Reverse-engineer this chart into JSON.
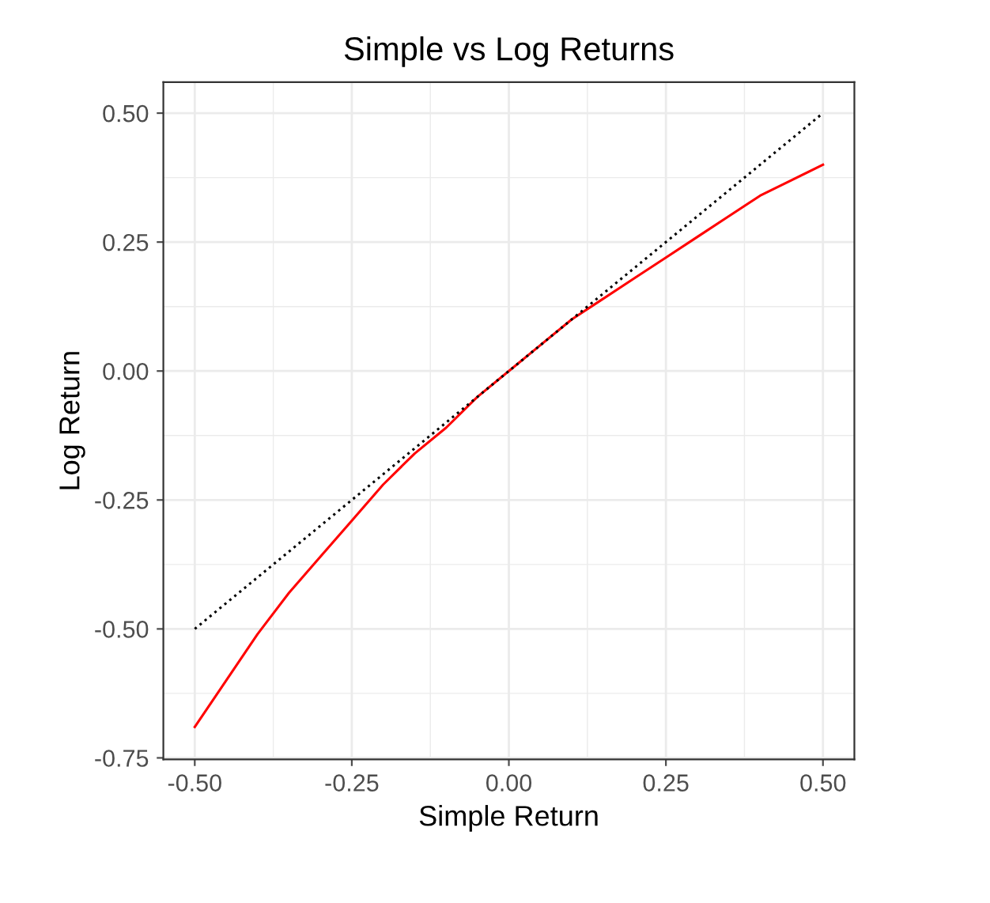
{
  "chart_data": {
    "type": "line",
    "title": "Simple vs Log Returns",
    "xlabel": "Simple Return",
    "ylabel": "Log Return",
    "xlim": [
      -0.55,
      0.55
    ],
    "ylim": [
      -0.753,
      0.56
    ],
    "xticks": [
      {
        "value": -0.5,
        "label": "-0.50"
      },
      {
        "value": -0.25,
        "label": "-0.25"
      },
      {
        "value": 0,
        "label": "0.00"
      },
      {
        "value": 0.25,
        "label": "0.25"
      },
      {
        "value": 0.5,
        "label": "0.50"
      }
    ],
    "yticks": [
      {
        "value": -0.75,
        "label": "-0.75"
      },
      {
        "value": -0.5,
        "label": "-0.50"
      },
      {
        "value": -0.25,
        "label": "-0.25"
      },
      {
        "value": 0,
        "label": "0.00"
      },
      {
        "value": 0.25,
        "label": "0.25"
      },
      {
        "value": 0.5,
        "label": "0.50"
      }
    ],
    "grid": true,
    "legend": false,
    "series": [
      {
        "color": "#ff0000",
        "line_style": "solid",
        "x": [
          -0.5,
          -0.45,
          -0.4,
          -0.35,
          -0.3,
          -0.25,
          -0.2,
          -0.15,
          -0.1,
          -0.05,
          0,
          0.05,
          0.1,
          0.15,
          0.2,
          0.25,
          0.3,
          0.35,
          0.4,
          0.45,
          0.5
        ],
        "values": [
          -0.69,
          -0.6,
          -0.51,
          -0.43,
          -0.36,
          -0.29,
          -0.22,
          -0.16,
          -0.11,
          -0.05,
          0,
          0.05,
          0.1,
          0.14,
          0.18,
          0.22,
          0.26,
          0.3,
          0.34,
          0.37,
          0.4
        ]
      },
      {
        "color": "#000000",
        "line_style": "dotted",
        "x": [
          -0.5,
          0.5
        ],
        "values": [
          -0.5,
          0.5
        ]
      }
    ]
  }
}
